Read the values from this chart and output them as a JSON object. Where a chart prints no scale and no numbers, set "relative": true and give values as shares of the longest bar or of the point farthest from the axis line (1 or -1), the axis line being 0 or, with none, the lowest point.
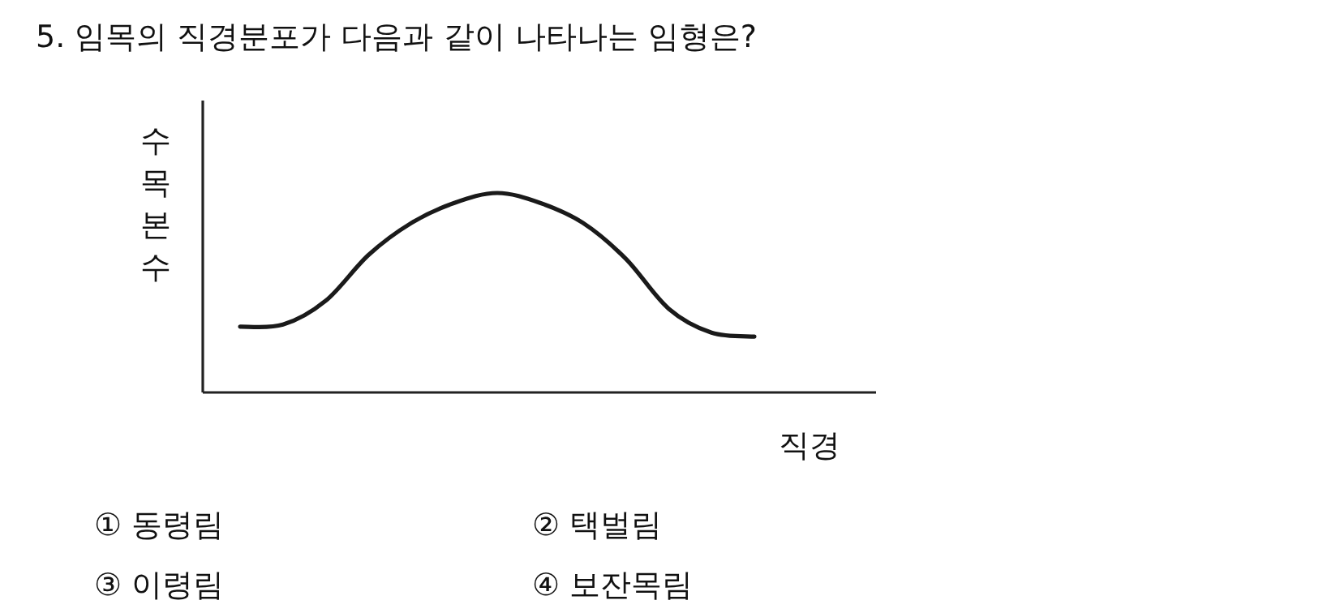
{
  "chart_data": {
    "type": "line",
    "title": "5. 임목의 직경분포가 다음과 같이 나타나는 임형은?",
    "xlabel": "직경",
    "ylabel": "수목본수",
    "relative": true,
    "categories": [
      null,
      null,
      null,
      null,
      null,
      null,
      null,
      null,
      null,
      null,
      null,
      null,
      null
    ],
    "series": [
      {
        "color": "#1a1a1a",
        "values": [
          0.33,
          0.34,
          0.46,
          0.69,
          0.85,
          0.95,
          1,
          0.95,
          0.85,
          0.67,
          0.42,
          0.3,
          0.28
        ]
      }
    ],
    "marker": "none",
    "line_style": "solid",
    "annotations": [
      "① 동령림",
      "② 택벌림",
      "③ 이령림",
      "④ 보잔목림"
    ]
  }
}
